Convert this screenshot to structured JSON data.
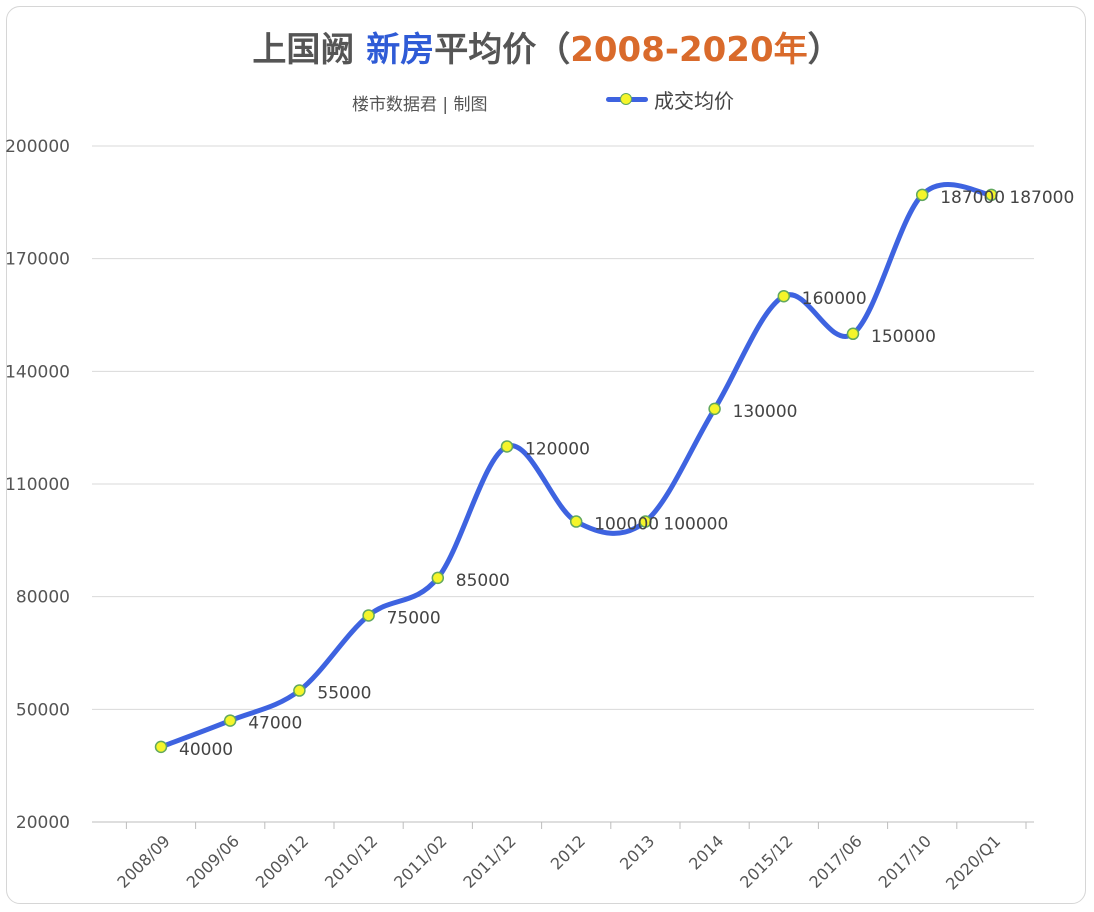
{
  "title": {
    "part1": "上国阙 ",
    "part2": "新房",
    "part3": "平均价（",
    "part4": "2008-2020年",
    "part5": "）"
  },
  "subtitle": "楼市数据君 | 制图",
  "colors": {
    "line": "#3e63e0",
    "marker_fill": "#f5f52a",
    "marker_stroke": "#62a85e",
    "title_accent": "#2f5bd6",
    "title_years": "#d96a2b"
  },
  "chart_data": {
    "type": "line",
    "categories": [
      "2008/09",
      "2009/06",
      "2009/12",
      "2010/12",
      "2011/02",
      "2011/12",
      "2012",
      "2013",
      "2014",
      "2015/12",
      "2017/06",
      "2017/10",
      "2020/Q1"
    ],
    "series": [
      {
        "name": "成交均价",
        "values": [
          40000,
          47000,
          55000,
          75000,
          85000,
          120000,
          100000,
          100000,
          130000,
          160000,
          150000,
          187000,
          187000
        ],
        "labels": [
          "40000",
          "47000",
          "55000",
          "75000",
          "85000",
          "120000",
          "100000",
          "100000",
          "130000",
          "160000",
          "150000",
          "187000",
          "187000"
        ]
      }
    ],
    "yticks": [
      "20000",
      "50000",
      "80000",
      "110000",
      "140000",
      "170000",
      "200000"
    ],
    "ylim": [
      20000,
      200000
    ],
    "smooth": true,
    "grid": true,
    "legend": "top-right"
  }
}
